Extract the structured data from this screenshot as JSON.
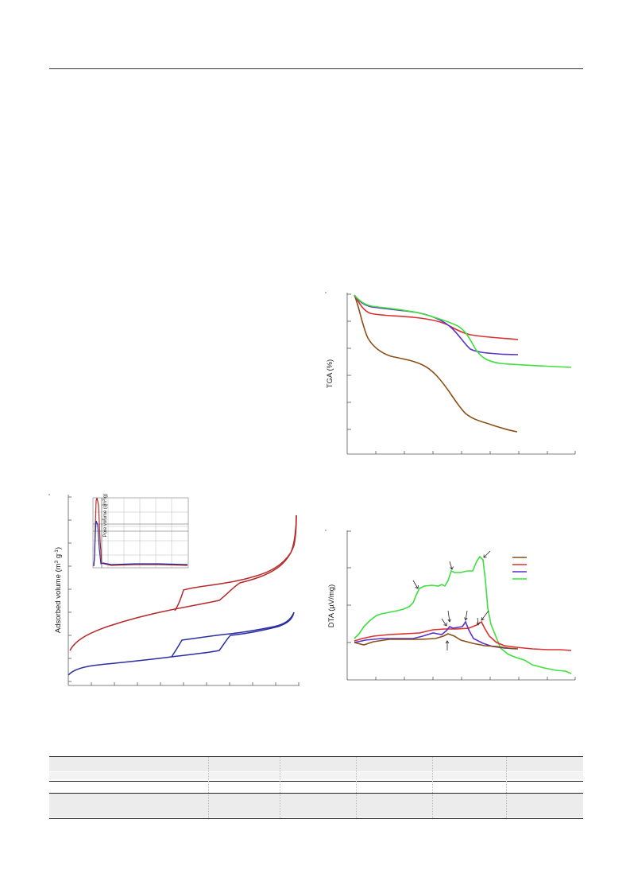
{
  "figures": {
    "tga": {
      "ylabel": "TGA (%)",
      "colors": [
        "#8a4f14",
        "#d93030",
        "#5a32c8",
        "#3de03d"
      ]
    },
    "dta": {
      "ylabel": "DTA (µV/mg)",
      "colors": [
        "#8a4f14",
        "#d93030",
        "#5a32c8",
        "#3de03d"
      ]
    },
    "isotherm": {
      "ylabel": "Adsorbed volume (m",
      "ylabel_sup1": "3",
      "ylabel_mid": " g",
      "ylabel_sup2": "-1",
      "ylabel_end": ")",
      "inset_ylabel": "Pore volume (cm",
      "inset_sup": "3",
      "inset_end": "/g)",
      "colors": [
        "#b52a2a",
        "#2a2ea0"
      ]
    }
  }
}
